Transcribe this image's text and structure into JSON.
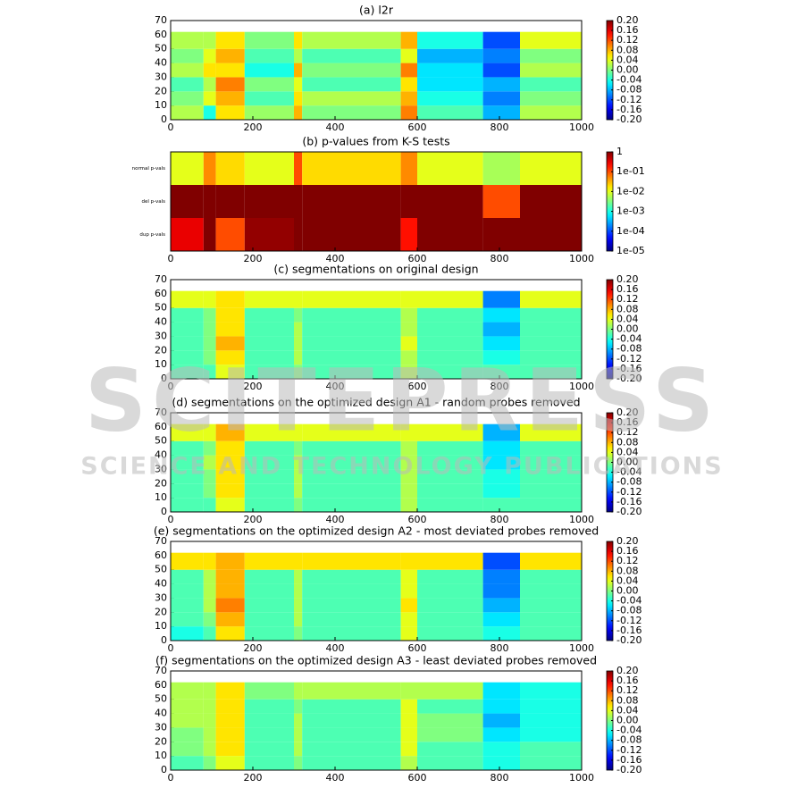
{
  "watermark": {
    "title": "SCITEPRESS",
    "subtitle": "SCIENCE AND TECHNOLOGY PUBLICATIONS"
  },
  "chart_data": [
    {
      "type": "heatmap",
      "title": "(a) l2r",
      "xlim": [
        0,
        1000
      ],
      "xticks": [
        0,
        200,
        400,
        600,
        800,
        1000
      ],
      "ylim": [
        0,
        70
      ],
      "yticks": [
        0,
        10,
        20,
        30,
        40,
        50,
        60,
        70
      ],
      "x_edges": [
        0,
        80,
        110,
        180,
        300,
        320,
        560,
        600,
        760,
        850,
        1000
      ],
      "y_edges": [
        0,
        10,
        20,
        30,
        40,
        50,
        62
      ],
      "values": [
        [
          0.02,
          -0.04,
          0.06,
          0.01,
          0.08,
          0.0,
          0.1,
          -0.02,
          -0.08,
          0.02
        ],
        [
          0.0,
          0.04,
          0.08,
          -0.02,
          0.06,
          0.02,
          0.08,
          -0.04,
          -0.1,
          0.0
        ],
        [
          -0.02,
          0.02,
          0.1,
          0.0,
          0.04,
          -0.02,
          0.06,
          -0.06,
          -0.08,
          -0.02
        ],
        [
          0.02,
          0.06,
          0.06,
          -0.04,
          0.08,
          0.0,
          0.1,
          -0.06,
          -0.12,
          0.02
        ],
        [
          0.0,
          0.04,
          0.08,
          -0.02,
          0.02,
          -0.02,
          0.04,
          -0.08,
          -0.1,
          0.0
        ],
        [
          0.02,
          0.02,
          0.06,
          0.0,
          0.06,
          0.02,
          0.08,
          -0.04,
          -0.12,
          0.04
        ]
      ],
      "clim": [
        -0.2,
        0.2
      ],
      "cticks": [
        {
          "value": -0.2,
          "label": "-0.20"
        },
        {
          "value": -0.16,
          "label": "-0.16"
        },
        {
          "value": -0.12,
          "label": "-0.12"
        },
        {
          "value": -0.08,
          "label": "-0.08"
        },
        {
          "value": -0.04,
          "label": "-0.04"
        },
        {
          "value": 0,
          "label": "0.00"
        },
        {
          "value": 0.04,
          "label": "0.04"
        },
        {
          "value": 0.08,
          "label": "0.08"
        },
        {
          "value": 0.12,
          "label": "0.12"
        },
        {
          "value": 0.16,
          "label": "0.16"
        },
        {
          "value": 0.2,
          "label": "0.20"
        }
      ]
    },
    {
      "type": "heatmap",
      "title": "(b) p-values from K-S tests",
      "xlim": [
        0,
        1000
      ],
      "xticks": [
        0,
        200,
        400,
        600,
        800,
        1000
      ],
      "categories": [
        "normal p-vals",
        "del p-vals",
        "dup p-vals"
      ],
      "x_edges": [
        0,
        80,
        110,
        180,
        300,
        320,
        560,
        600,
        760,
        850,
        1000
      ],
      "values": [
        [
          0.01,
          0.05,
          0.02,
          0.01,
          0.1,
          0.02,
          0.05,
          0.01,
          0.005,
          0.01
        ],
        [
          1,
          1,
          1,
          1,
          1,
          1,
          1,
          1,
          0.1,
          1
        ],
        [
          0.3,
          1,
          0.1,
          0.8,
          1,
          1,
          0.2,
          1,
          1,
          1
        ]
      ],
      "clim": [
        1e-05,
        1
      ],
      "color_log": true,
      "cticks": [
        {
          "value": 1e-05,
          "label": "1e-05"
        },
        {
          "value": 0.0001,
          "label": "1e-04"
        },
        {
          "value": 0.001,
          "label": "1e-03"
        },
        {
          "value": 0.01,
          "label": "1e-02"
        },
        {
          "value": 0.1,
          "label": "1e-01"
        },
        1
      ]
    },
    {
      "type": "heatmap",
      "title": "(c) segmentations on original design",
      "xlim": [
        0,
        1000
      ],
      "xticks": [
        0,
        200,
        400,
        600,
        800,
        1000
      ],
      "ylim": [
        0,
        70
      ],
      "yticks": [
        0,
        10,
        20,
        30,
        40,
        50,
        60,
        70
      ],
      "x_edges": [
        0,
        80,
        110,
        180,
        300,
        320,
        560,
        600,
        760,
        850,
        1000
      ],
      "y_edges": [
        0,
        10,
        20,
        30,
        40,
        50,
        62
      ],
      "values": [
        [
          -0.02,
          -0.02,
          0.04,
          -0.02,
          0.0,
          -0.02,
          0.02,
          -0.02,
          -0.02,
          -0.02
        ],
        [
          -0.02,
          0.0,
          0.06,
          -0.02,
          0.02,
          -0.02,
          0.02,
          -0.02,
          -0.04,
          -0.02
        ],
        [
          -0.02,
          0.0,
          0.08,
          -0.02,
          0.02,
          -0.02,
          0.04,
          -0.02,
          -0.06,
          -0.02
        ],
        [
          -0.02,
          0.0,
          0.06,
          -0.02,
          0.02,
          -0.02,
          0.02,
          -0.02,
          -0.08,
          -0.02
        ],
        [
          -0.02,
          0.0,
          0.06,
          -0.02,
          0.0,
          -0.02,
          0.02,
          -0.02,
          -0.06,
          -0.02
        ],
        [
          0.04,
          0.04,
          0.06,
          0.04,
          0.04,
          0.04,
          0.04,
          0.04,
          -0.1,
          0.04
        ]
      ],
      "clim": [
        -0.2,
        0.2
      ],
      "cticks": [
        {
          "value": -0.2,
          "label": "-0.20"
        },
        {
          "value": -0.16,
          "label": "-0.16"
        },
        {
          "value": -0.12,
          "label": "-0.12"
        },
        {
          "value": -0.08,
          "label": "-0.08"
        },
        {
          "value": -0.04,
          "label": "-0.04"
        },
        {
          "value": 0,
          "label": "0.00"
        },
        {
          "value": 0.04,
          "label": "0.04"
        },
        {
          "value": 0.08,
          "label": "0.08"
        },
        {
          "value": 0.12,
          "label": "0.12"
        },
        {
          "value": 0.16,
          "label": "0.16"
        },
        {
          "value": 0.2,
          "label": "0.20"
        }
      ]
    },
    {
      "type": "heatmap",
      "title": "(d) segmentations on the optimized design A1 - random probes removed",
      "xlim": [
        0,
        1000
      ],
      "xticks": [
        0,
        200,
        400,
        600,
        800,
        1000
      ],
      "ylim": [
        0,
        70
      ],
      "yticks": [
        0,
        10,
        20,
        30,
        40,
        50,
        60,
        70
      ],
      "x_edges": [
        0,
        80,
        110,
        180,
        300,
        320,
        560,
        600,
        760,
        850,
        1000
      ],
      "y_edges": [
        0,
        10,
        20,
        30,
        40,
        50,
        62
      ],
      "values": [
        [
          -0.02,
          -0.02,
          0.04,
          -0.02,
          0.0,
          -0.02,
          0.02,
          -0.02,
          -0.02,
          -0.02
        ],
        [
          -0.02,
          0.0,
          0.06,
          -0.02,
          0.02,
          -0.02,
          0.02,
          -0.02,
          -0.04,
          -0.02
        ],
        [
          -0.02,
          0.0,
          0.06,
          -0.02,
          0.02,
          -0.02,
          0.02,
          -0.02,
          -0.04,
          -0.02
        ],
        [
          -0.02,
          0.02,
          0.06,
          -0.02,
          0.02,
          -0.02,
          0.02,
          -0.02,
          -0.06,
          -0.02
        ],
        [
          -0.02,
          0.0,
          0.06,
          -0.02,
          0.0,
          -0.02,
          0.02,
          -0.02,
          -0.06,
          -0.02
        ],
        [
          0.04,
          0.04,
          0.08,
          0.04,
          0.04,
          0.04,
          0.04,
          0.04,
          -0.08,
          0.04
        ]
      ],
      "clim": [
        -0.2,
        0.2
      ],
      "cticks": [
        {
          "value": -0.2,
          "label": "-0.20"
        },
        {
          "value": -0.16,
          "label": "-0.16"
        },
        {
          "value": -0.12,
          "label": "-0.12"
        },
        {
          "value": -0.08,
          "label": "-0.08"
        },
        {
          "value": -0.04,
          "label": "-0.04"
        },
        {
          "value": 0,
          "label": "0.00"
        },
        {
          "value": 0.04,
          "label": "0.04"
        },
        {
          "value": 0.08,
          "label": "0.08"
        },
        {
          "value": 0.12,
          "label": "0.12"
        },
        {
          "value": 0.16,
          "label": "0.16"
        },
        {
          "value": 0.2,
          "label": "0.20"
        }
      ]
    },
    {
      "type": "heatmap",
      "title": "(e) segmentations on the optimized design A2 - most deviated probes removed",
      "xlim": [
        0,
        1000
      ],
      "xticks": [
        0,
        200,
        400,
        600,
        800,
        1000
      ],
      "ylim": [
        0,
        70
      ],
      "yticks": [
        0,
        10,
        20,
        30,
        40,
        50,
        60,
        70
      ],
      "x_edges": [
        0,
        80,
        110,
        180,
        300,
        320,
        560,
        600,
        760,
        850,
        1000
      ],
      "y_edges": [
        0,
        10,
        20,
        30,
        40,
        50,
        62
      ],
      "values": [
        [
          -0.04,
          -0.02,
          0.06,
          -0.02,
          0.0,
          -0.02,
          0.04,
          -0.02,
          -0.04,
          -0.02
        ],
        [
          -0.02,
          0.0,
          0.08,
          -0.02,
          0.02,
          -0.02,
          0.04,
          -0.02,
          -0.06,
          -0.02
        ],
        [
          -0.02,
          0.02,
          0.1,
          -0.02,
          0.02,
          -0.02,
          0.06,
          -0.02,
          -0.08,
          -0.02
        ],
        [
          -0.02,
          0.02,
          0.08,
          -0.02,
          0.02,
          -0.02,
          0.04,
          -0.02,
          -0.1,
          -0.02
        ],
        [
          -0.02,
          0.02,
          0.08,
          -0.02,
          0.02,
          -0.02,
          0.04,
          -0.02,
          -0.1,
          -0.02
        ],
        [
          0.06,
          0.06,
          0.08,
          0.06,
          0.06,
          0.06,
          0.06,
          0.06,
          -0.12,
          0.06
        ]
      ],
      "clim": [
        -0.2,
        0.2
      ],
      "cticks": [
        {
          "value": -0.2,
          "label": "-0.20"
        },
        {
          "value": -0.16,
          "label": "-0.16"
        },
        {
          "value": -0.12,
          "label": "-0.12"
        },
        {
          "value": -0.08,
          "label": "-0.08"
        },
        {
          "value": -0.04,
          "label": "-0.04"
        },
        {
          "value": 0,
          "label": "0.00"
        },
        {
          "value": 0.04,
          "label": "0.04"
        },
        {
          "value": 0.08,
          "label": "0.08"
        },
        {
          "value": 0.12,
          "label": "0.12"
        },
        {
          "value": 0.16,
          "label": "0.16"
        },
        {
          "value": 0.2,
          "label": "0.20"
        }
      ]
    },
    {
      "type": "heatmap",
      "title": "(f) segmentations on the optimized design A3 - least deviated probes removed",
      "xlim": [
        0,
        1000
      ],
      "xticks": [
        0,
        200,
        400,
        600,
        800,
        1000
      ],
      "ylim": [
        0,
        70
      ],
      "yticks": [
        0,
        10,
        20,
        30,
        40,
        50,
        60,
        70
      ],
      "x_edges": [
        0,
        80,
        110,
        180,
        300,
        320,
        560,
        600,
        760,
        850,
        1000
      ],
      "y_edges": [
        0,
        10,
        20,
        30,
        40,
        50,
        62
      ],
      "values": [
        [
          -0.02,
          0.0,
          0.04,
          -0.02,
          0.0,
          -0.02,
          0.02,
          -0.02,
          -0.04,
          -0.02
        ],
        [
          0.0,
          0.02,
          0.06,
          -0.02,
          0.02,
          -0.02,
          0.04,
          -0.02,
          -0.04,
          -0.02
        ],
        [
          0.0,
          0.02,
          0.06,
          -0.02,
          0.02,
          -0.02,
          0.04,
          0.0,
          -0.06,
          -0.04
        ],
        [
          0.02,
          0.02,
          0.06,
          -0.02,
          0.02,
          -0.02,
          0.04,
          0.0,
          -0.08,
          -0.04
        ],
        [
          0.02,
          0.02,
          0.06,
          -0.02,
          0.0,
          -0.02,
          0.04,
          -0.02,
          -0.06,
          -0.04
        ],
        [
          0.02,
          0.02,
          0.06,
          0.0,
          0.02,
          0.02,
          0.02,
          0.02,
          -0.06,
          -0.04
        ]
      ],
      "clim": [
        -0.2,
        0.2
      ],
      "cticks": [
        {
          "value": -0.2,
          "label": "-0.20"
        },
        {
          "value": -0.16,
          "label": "-0.16"
        },
        {
          "value": -0.12,
          "label": "-0.12"
        },
        {
          "value": -0.08,
          "label": "-0.08"
        },
        {
          "value": -0.04,
          "label": "-0.04"
        },
        {
          "value": 0,
          "label": "0.00"
        },
        {
          "value": 0.04,
          "label": "0.04"
        },
        {
          "value": 0.08,
          "label": "0.08"
        },
        {
          "value": 0.12,
          "label": "0.12"
        },
        {
          "value": 0.16,
          "label": "0.16"
        },
        {
          "value": 0.2,
          "label": "0.20"
        }
      ]
    }
  ]
}
